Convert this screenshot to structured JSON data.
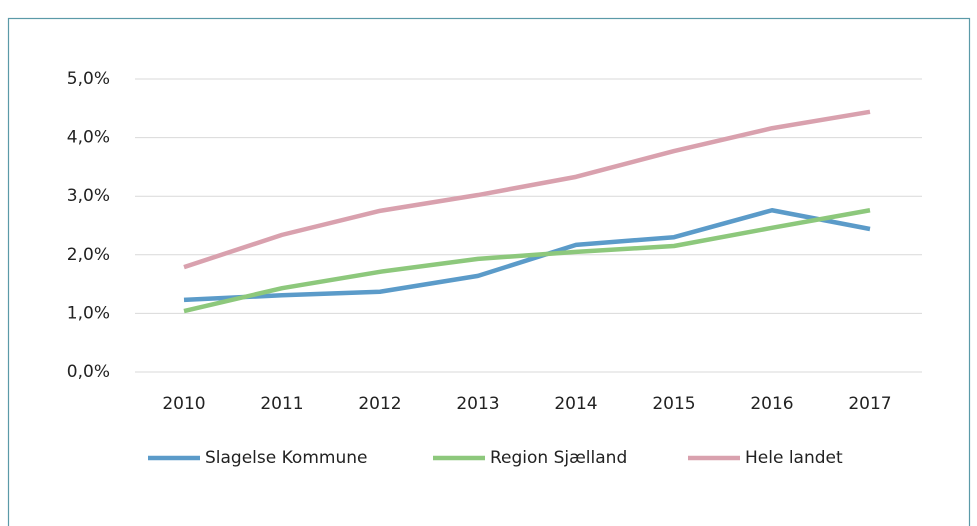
{
  "chart_data": {
    "type": "line",
    "x": [
      "2010",
      "2011",
      "2012",
      "2013",
      "2014",
      "2015",
      "2016",
      "2017"
    ],
    "series": [
      {
        "name": "Slagelse Kommune",
        "color": "#5b9bc9",
        "values": [
          1.23,
          1.31,
          1.37,
          1.64,
          2.17,
          2.3,
          2.76,
          2.44
        ]
      },
      {
        "name": "Region Sjælland",
        "color": "#8dc87c",
        "values": [
          1.04,
          1.43,
          1.71,
          1.93,
          2.05,
          2.15,
          2.46,
          2.76
        ]
      },
      {
        "name": "Hele landet",
        "color": "#d9a1ae",
        "values": [
          1.79,
          2.34,
          2.75,
          3.02,
          3.33,
          3.77,
          4.16,
          4.44
        ]
      }
    ],
    "ylim": [
      0,
      5
    ],
    "yticks": [
      {
        "value": 0,
        "label": "0,0%"
      },
      {
        "value": 1,
        "label": "1,0%"
      },
      {
        "value": 2,
        "label": "2,0%"
      },
      {
        "value": 3,
        "label": "3,0%"
      },
      {
        "value": 4,
        "label": "4,0%"
      },
      {
        "value": 5,
        "label": "5,0%"
      }
    ],
    "grid": true,
    "legend": "bottom"
  }
}
